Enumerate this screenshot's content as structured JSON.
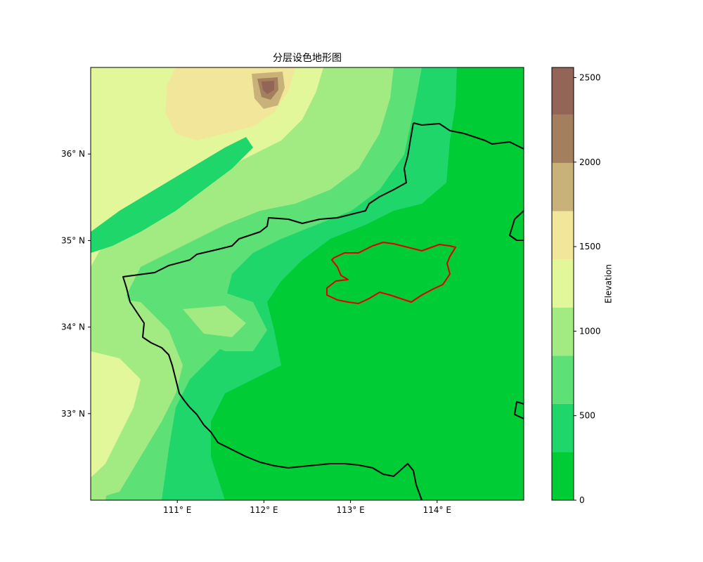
{
  "title": "分层设色地形图",
  "map": {
    "lon_ticks": [
      {
        "value": 111,
        "label": "111° E"
      },
      {
        "value": 112,
        "label": "112° E"
      },
      {
        "value": 113,
        "label": "113° E"
      },
      {
        "value": 114,
        "label": "114° E"
      }
    ],
    "lat_ticks": [
      {
        "value": 36,
        "label": "36° N"
      },
      {
        "value": 35,
        "label": "35° N"
      },
      {
        "value": 34,
        "label": "34° N"
      },
      {
        "value": 33,
        "label": "33° N"
      }
    ],
    "extent": {
      "lon": [
        110,
        115
      ],
      "lat": [
        32,
        37
      ]
    },
    "province_border_color": "#000000",
    "region_outline_color": "#e00000"
  },
  "colorbar": {
    "label": "Elevation",
    "ticks": [
      {
        "value": 0,
        "label": "0"
      },
      {
        "value": 500,
        "label": "500"
      },
      {
        "value": 1000,
        "label": "1000"
      },
      {
        "value": 1500,
        "label": "1500"
      },
      {
        "value": 2000,
        "label": "2000"
      },
      {
        "value": 2500,
        "label": "2500"
      }
    ],
    "range": [
      0,
      2560
    ],
    "levels": [
      {
        "from": 0,
        "to": 285,
        "color": "#00cc35"
      },
      {
        "from": 285,
        "to": 570,
        "color": "#1ed66a"
      },
      {
        "from": 570,
        "to": 855,
        "color": "#5de075"
      },
      {
        "from": 855,
        "to": 1140,
        "color": "#a2ea82"
      },
      {
        "from": 1140,
        "to": 1425,
        "color": "#e1f79a"
      },
      {
        "from": 1425,
        "to": 1710,
        "color": "#f2e69a"
      },
      {
        "from": 1710,
        "to": 1995,
        "color": "#c8b27a"
      },
      {
        "from": 1995,
        "to": 2280,
        "color": "#a37f5d"
      },
      {
        "from": 2280,
        "to": 2560,
        "color": "#936557"
      }
    ]
  }
}
